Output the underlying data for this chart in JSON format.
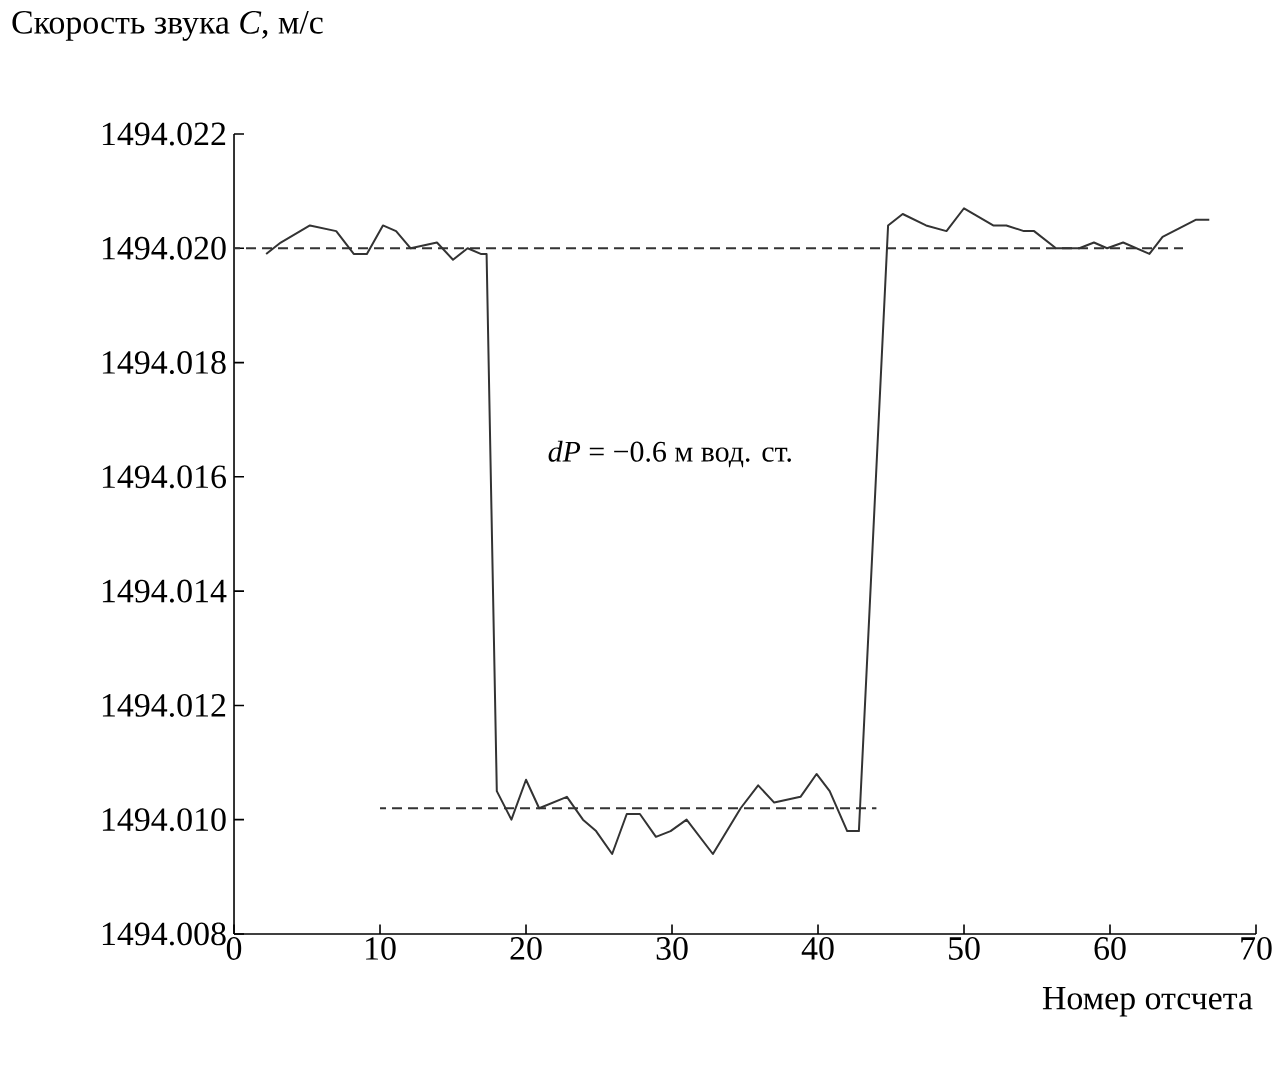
{
  "chart_data": {
    "type": "line",
    "xlabel": "Номер отсчета",
    "ylabel": "Скорость звука  *C*, м/с",
    "annotations": [
      "*dP* = −0.6 м вод. ст."
    ],
    "xlim": [
      0,
      70
    ],
    "xticks": [
      0,
      10,
      20,
      30,
      40,
      50,
      60,
      70
    ],
    "ylim": [
      1494.008,
      1494.022
    ],
    "yticks": [
      {
        "value": 1494.008,
        "label": "1494.008"
      },
      {
        "value": 1494.01,
        "label": "1494.010"
      },
      {
        "value": 1494.012,
        "label": "1494.012"
      },
      {
        "value": 1494.014,
        "label": "1494.014"
      },
      {
        "value": 1494.016,
        "label": "1494.016"
      },
      {
        "value": 1494.018,
        "label": "1494.018"
      },
      {
        "value": 1494.02,
        "label": "1494.020"
      },
      {
        "value": 1494.022,
        "label": "1494.022"
      }
    ],
    "grid": false,
    "marker": "none",
    "series": [
      {
        "color": "#333333",
        "line_style": "solid",
        "x": [
          2.2,
          3.2,
          5.2,
          7.0,
          8.2,
          9.1,
          10.2,
          11.1,
          12.1,
          13.9,
          15.0,
          16.0,
          16.9,
          17.3,
          18.0,
          19.0,
          20.0,
          20.9,
          22.8,
          23.9,
          24.8,
          25.9,
          26.9,
          27.8,
          28.9,
          29.9,
          31.0,
          32.8,
          34.7,
          35.9,
          37.0,
          38.8,
          39.9,
          40.8,
          42.0,
          42.8,
          44.8,
          45.8,
          47.4,
          48.8,
          50.0,
          52.0,
          52.9,
          54.1,
          54.8,
          56.3,
          57.9,
          58.9,
          59.8,
          60.9,
          62.7,
          63.6,
          65.9,
          66.8
        ],
        "values": [
          1494.0199,
          1494.0201,
          1494.0204,
          1494.0203,
          1494.0199,
          1494.0199,
          1494.0204,
          1494.0203,
          1494.02,
          1494.0201,
          1494.0198,
          1494.02,
          1494.0199,
          1494.0199,
          1494.0105,
          1494.01,
          1494.0107,
          1494.0102,
          1494.0104,
          1494.01,
          1494.0098,
          1494.0094,
          1494.0101,
          1494.0101,
          1494.0097,
          1494.0098,
          1494.01,
          1494.0094,
          1494.0102,
          1494.0106,
          1494.0103,
          1494.0104,
          1494.0108,
          1494.0105,
          1494.0098,
          1494.0098,
          1494.0204,
          1494.0206,
          1494.0204,
          1494.0203,
          1494.0207,
          1494.0204,
          1494.0204,
          1494.0203,
          1494.0203,
          1494.02,
          1494.02,
          1494.0201,
          1494.02,
          1494.0201,
          1494.0199,
          1494.0202,
          1494.0205,
          1494.0205
        ]
      },
      {
        "color": "#333333",
        "line_style": "dashed",
        "x": [
          0,
          65
        ],
        "values": [
          1494.02,
          1494.02
        ]
      },
      {
        "color": "#333333",
        "line_style": "dashed",
        "x": [
          10,
          44
        ],
        "values": [
          1494.0102,
          1494.0102
        ]
      }
    ]
  }
}
